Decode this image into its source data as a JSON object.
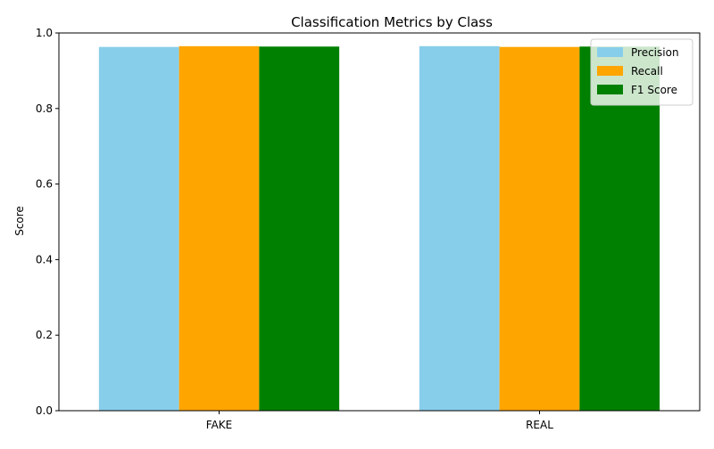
{
  "chart_data": {
    "type": "bar",
    "title": "Classification Metrics by Class",
    "xlabel": "",
    "ylabel": "Score",
    "categories": [
      "FAKE",
      "REAL"
    ],
    "ylim": [
      0,
      1.0
    ],
    "yticks": [
      "0.0",
      "0.2",
      "0.4",
      "0.6",
      "0.8",
      "1.0"
    ],
    "grid": false,
    "legend_position": "top-right",
    "series": [
      {
        "name": "Precision",
        "color": "#87CEEB",
        "values": [
          0.963,
          0.965
        ]
      },
      {
        "name": "Recall",
        "color": "#FFA500",
        "values": [
          0.965,
          0.963
        ]
      },
      {
        "name": "F1 Score",
        "color": "#008000",
        "values": [
          0.964,
          0.964
        ]
      }
    ]
  }
}
